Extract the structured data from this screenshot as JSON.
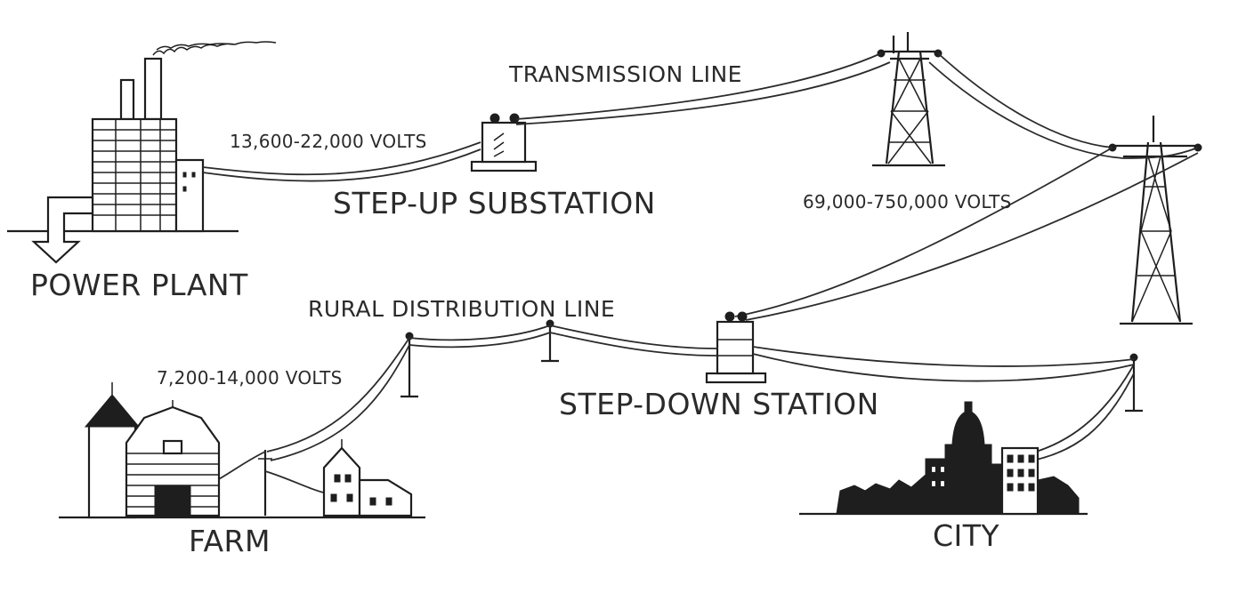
{
  "labels": {
    "power_plant": "POWER PLANT",
    "step_up_substation": "STEP-UP SUBSTATION",
    "transmission_line": "TRANSMISSION LINE",
    "step_down_station": "STEP-DOWN STATION",
    "rural_distribution_line": "RURAL DISTRIBUTION LINE",
    "farm": "FARM",
    "city": "CITY"
  },
  "voltages": {
    "generation": "13,600-22,000 VOLTS",
    "transmission": "69,000-750,000 VOLTS",
    "distribution": "7,200-14,000 VOLTS"
  },
  "colors": {
    "ink": "#1e1e1e",
    "background": "#ffffff"
  }
}
